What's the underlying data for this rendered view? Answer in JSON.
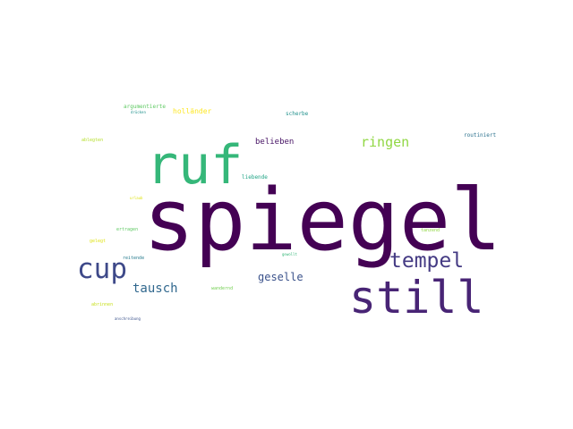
{
  "words": [
    {
      "text": "spiegel",
      "color": "#440154"
    },
    {
      "text": "ruf",
      "color": "#35b779"
    },
    {
      "text": "still",
      "color": "#482475"
    },
    {
      "text": "cup",
      "color": "#3e4989"
    },
    {
      "text": "tempel",
      "color": "#443a83"
    },
    {
      "text": "ringen",
      "color": "#90d743"
    },
    {
      "text": "tausch",
      "color": "#31688e"
    },
    {
      "text": "geselle",
      "color": "#3b528b"
    },
    {
      "text": "belieben",
      "color": "#471365"
    },
    {
      "text": "holländer",
      "color": "#fde725"
    },
    {
      "text": "argumentierte",
      "color": "#5ec962"
    },
    {
      "text": "drücken",
      "color": "#21918c"
    },
    {
      "text": "scherbe",
      "color": "#21918c"
    },
    {
      "text": "routiniert",
      "color": "#2c728e"
    },
    {
      "text": "ablegten",
      "color": "#b5de2b"
    },
    {
      "text": "liebende",
      "color": "#20a486"
    },
    {
      "text": "urlaub",
      "color": "#dfe318"
    },
    {
      "text": "ertragen",
      "color": "#5ec962"
    },
    {
      "text": "gelegt",
      "color": "#dfe318"
    },
    {
      "text": "reitende",
      "color": "#287c8e"
    },
    {
      "text": "tanzend",
      "color": "#90d743"
    },
    {
      "text": "gewollt",
      "color": "#35b779"
    },
    {
      "text": "wandernd",
      "color": "#75d054"
    },
    {
      "text": "abrinnen",
      "color": "#c8e020"
    },
    {
      "text": "anschreibung",
      "color": "#3b528b"
    }
  ]
}
